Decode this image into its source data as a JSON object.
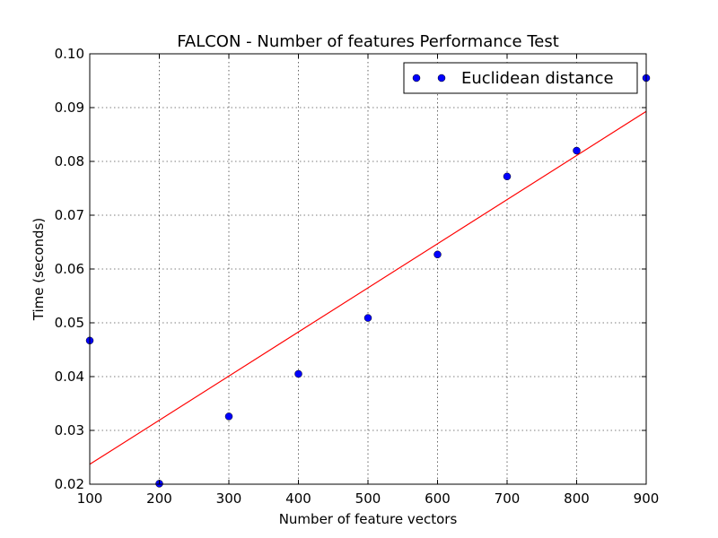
{
  "chart_data": {
    "type": "scatter",
    "title": "FALCON - Number of features Performance Test",
    "xlabel": "Number of feature vectors",
    "ylabel": "Time (seconds)",
    "xlim": [
      100,
      900
    ],
    "ylim": [
      0.02,
      0.1
    ],
    "xticks": [
      "100",
      "200",
      "300",
      "400",
      "500",
      "600",
      "700",
      "800",
      "900"
    ],
    "yticks": [
      "0.02",
      "0.03",
      "0.04",
      "0.05",
      "0.06",
      "0.07",
      "0.08",
      "0.09",
      "0.10"
    ],
    "grid": true,
    "legend_position": "top-right",
    "series": [
      {
        "name": "Euclidean distance",
        "color": "#0000ff",
        "marker": "circle",
        "x": [
          100,
          200,
          300,
          400,
          500,
          600,
          700,
          800,
          900
        ],
        "y": [
          0.0467,
          0.0201,
          0.0326,
          0.0405,
          0.0509,
          0.0627,
          0.0772,
          0.082,
          0.0955
        ]
      }
    ],
    "fit_line": {
      "color": "#ff0000",
      "x": [
        100,
        900
      ],
      "y": [
        0.0237,
        0.0893
      ]
    }
  }
}
